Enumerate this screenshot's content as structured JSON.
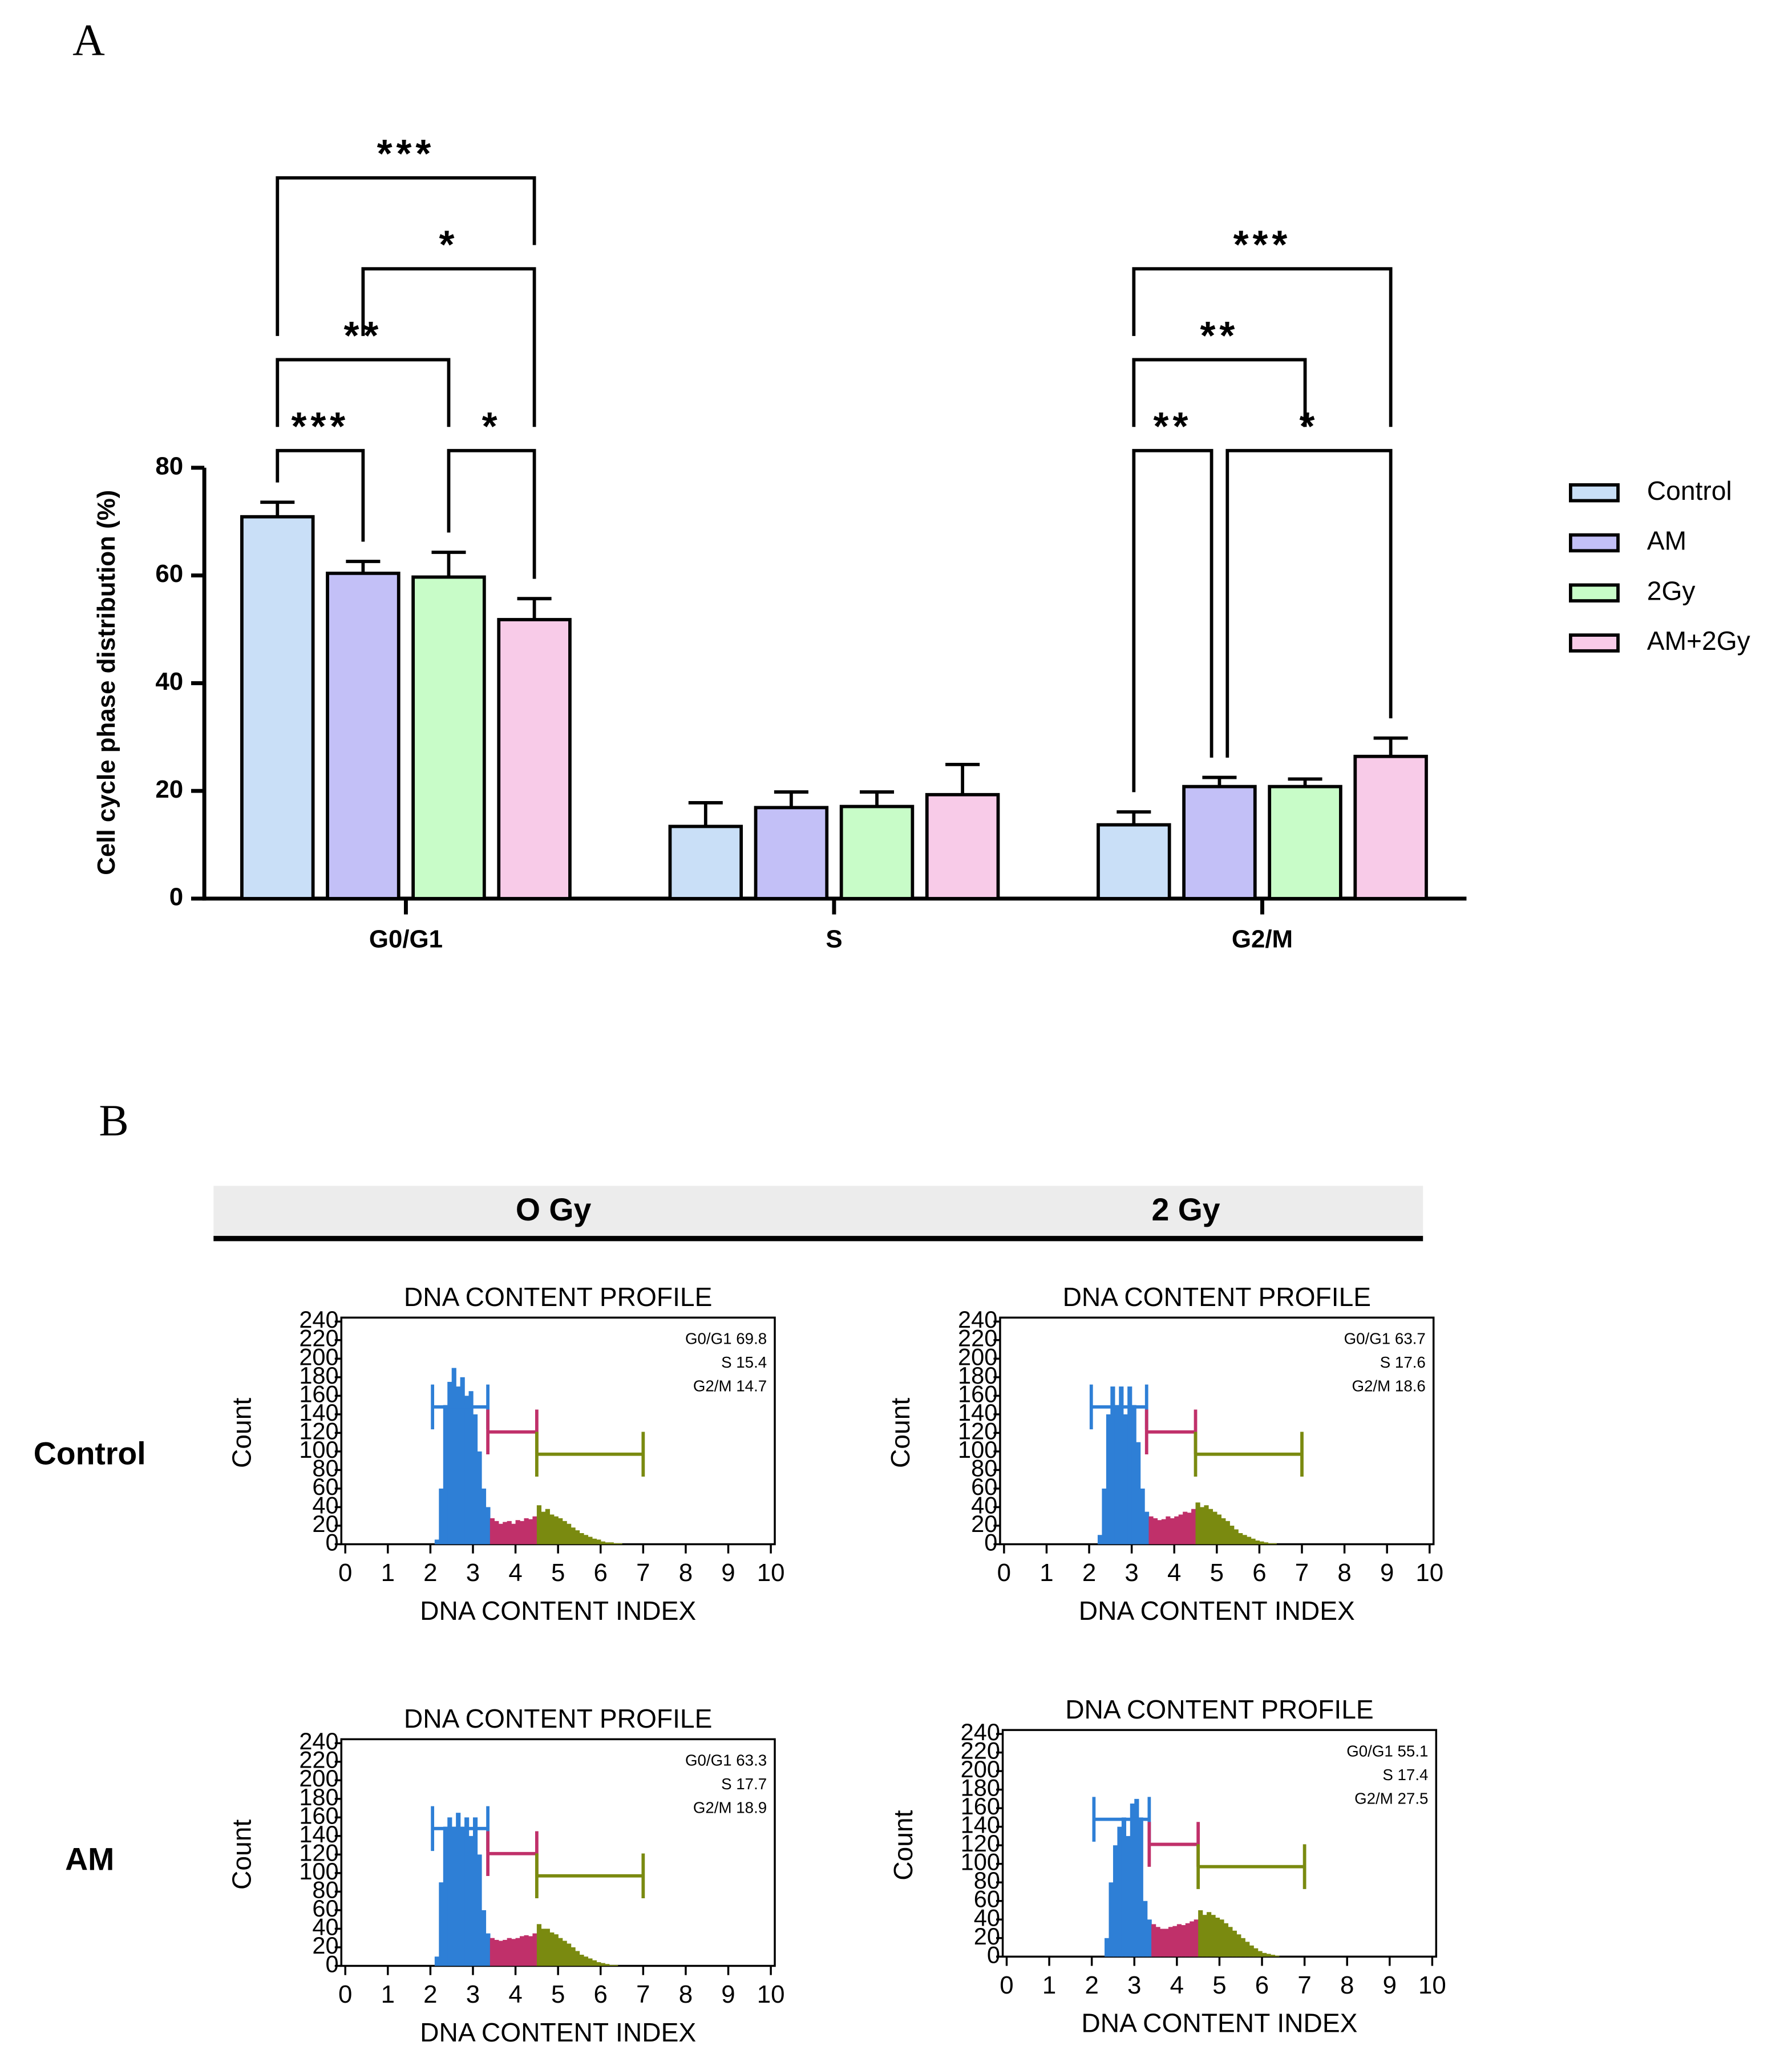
{
  "panels": [
    "A",
    "B"
  ],
  "columns": [
    "O Gy",
    "2 Gy"
  ],
  "rows": [
    "Control",
    "AM"
  ],
  "chart_data": [
    {
      "type": "bar",
      "ylabel": "Cell cycle phase distribution (%)",
      "categories": [
        "G0/G1",
        "S",
        "G2/M"
      ],
      "series": [
        {
          "name": "Control",
          "color": "#c9dff7",
          "values": [
            70.9,
            13.4,
            13.7
          ],
          "errors": [
            2.7,
            4.4,
            2.4
          ]
        },
        {
          "name": "AM",
          "color": "#c3c0f7",
          "values": [
            60.4,
            16.9,
            20.8
          ],
          "errors": [
            2.2,
            2.9,
            1.7
          ]
        },
        {
          "name": "2Gy",
          "color": "#c8fcc8",
          "values": [
            59.7,
            17.1,
            20.8
          ],
          "errors": [
            4.6,
            2.7,
            1.4
          ]
        },
        {
          "name": "AM+2Gy",
          "color": "#f8cbe8",
          "values": [
            51.8,
            19.3,
            26.4
          ],
          "errors": [
            3.9,
            5.6,
            3.4
          ]
        }
      ],
      "ylim": [
        0,
        80
      ],
      "yticks": [
        0,
        20,
        40,
        60,
        80
      ],
      "comparisons": [
        {
          "category": "G0/G1",
          "between": [
            "Control",
            "AM"
          ],
          "label": "***"
        },
        {
          "category": "G0/G1",
          "between": [
            "2Gy",
            "AM+2Gy"
          ],
          "label": "*"
        },
        {
          "category": "G0/G1",
          "between": [
            "Control",
            "2Gy"
          ],
          "label": "**"
        },
        {
          "category": "G0/G1",
          "between": [
            "AM",
            "AM+2Gy"
          ],
          "label": "*"
        },
        {
          "category": "G0/G1",
          "between": [
            "Control",
            "AM+2Gy"
          ],
          "label": "***"
        },
        {
          "category": "G2/M",
          "between": [
            "Control",
            "AM"
          ],
          "label": "**"
        },
        {
          "category": "G2/M",
          "between": [
            "AM",
            "AM+2Gy"
          ],
          "label": "*"
        },
        {
          "category": "G2/M",
          "between": [
            "Control",
            "2Gy"
          ],
          "label": "**"
        },
        {
          "category": "G2/M",
          "between": [
            "Control",
            "AM+2Gy"
          ],
          "label": "***"
        }
      ]
    },
    {
      "type": "histogram",
      "title": "DNA CONTENT PROFILE",
      "xlabel": "DNA CONTENT INDEX",
      "ylabel": "Count",
      "bins": [
        2.0,
        2.1,
        2.2,
        2.3,
        2.4,
        2.5,
        2.6,
        2.7,
        2.8,
        2.9,
        3.0,
        3.1,
        3.2,
        3.3,
        3.4,
        3.5,
        3.6,
        3.7,
        3.8,
        3.9,
        4.0,
        4.1,
        4.2,
        4.3,
        4.4,
        4.5,
        4.6,
        4.7,
        4.8,
        4.9,
        5.0,
        5.1,
        5.2,
        5.3,
        5.4,
        5.5,
        5.6,
        5.7,
        5.8,
        5.9,
        6.0,
        6.1,
        6.2,
        6.3,
        6.4,
        6.5
      ],
      "counts": [
        0,
        5,
        60,
        150,
        175,
        190,
        170,
        180,
        160,
        165,
        140,
        100,
        60,
        40,
        28,
        25,
        22,
        24,
        25,
        22,
        26,
        25,
        28,
        27,
        30,
        42,
        35,
        38,
        32,
        30,
        28,
        25,
        22,
        18,
        15,
        12,
        10,
        8,
        6,
        5,
        3,
        2,
        2,
        1,
        1
      ],
      "xlim": [
        0,
        10
      ],
      "xticks": [
        0,
        1,
        2,
        3,
        4,
        5,
        6,
        7,
        8,
        9,
        10
      ],
      "ylim": [
        0,
        240
      ],
      "yticks": [
        0,
        20,
        40,
        60,
        80,
        100,
        120,
        140,
        160,
        180,
        200,
        220,
        240
      ],
      "phases": [
        {
          "label": "G0/G1",
          "value": 69.8,
          "from": 2.05,
          "to": 3.35,
          "level": 148,
          "color": "#2e7fd6"
        },
        {
          "label": "S",
          "value": 15.4,
          "from": 3.35,
          "to": 4.5,
          "level": 121,
          "color": "#c0306a"
        },
        {
          "label": "G2/M",
          "value": 14.7,
          "from": 4.5,
          "to": 7.0,
          "level": 97,
          "color": "#7a8a10"
        }
      ]
    },
    {
      "type": "histogram",
      "title": "DNA CONTENT PROFILE",
      "xlabel": "DNA CONTENT INDEX",
      "ylabel": "Count",
      "bins": [
        2.0,
        2.1,
        2.2,
        2.3,
        2.4,
        2.5,
        2.6,
        2.7,
        2.8,
        2.9,
        3.0,
        3.1,
        3.2,
        3.3,
        3.4,
        3.5,
        3.6,
        3.7,
        3.8,
        3.9,
        4.0,
        4.1,
        4.2,
        4.3,
        4.4,
        4.5,
        4.6,
        4.7,
        4.8,
        4.9,
        5.0,
        5.1,
        5.2,
        5.3,
        5.4,
        5.5,
        5.6,
        5.7,
        5.8,
        5.9,
        6.0,
        6.1,
        6.2,
        6.3,
        6.4,
        6.5
      ],
      "counts": [
        0,
        0,
        10,
        60,
        140,
        170,
        150,
        170,
        140,
        170,
        150,
        110,
        60,
        35,
        30,
        28,
        26,
        27,
        30,
        28,
        30,
        32,
        35,
        34,
        38,
        45,
        40,
        42,
        38,
        35,
        32,
        28,
        25,
        20,
        16,
        12,
        10,
        8,
        6,
        4,
        3,
        2,
        1,
        1,
        0
      ],
      "xlim": [
        0,
        10
      ],
      "xticks": [
        0,
        1,
        2,
        3,
        4,
        5,
        6,
        7,
        8,
        9,
        10
      ],
      "ylim": [
        0,
        240
      ],
      "yticks": [
        0,
        20,
        40,
        60,
        80,
        100,
        120,
        140,
        160,
        180,
        200,
        220,
        240
      ],
      "phases": [
        {
          "label": "G0/G1",
          "value": 63.7,
          "from": 2.05,
          "to": 3.35,
          "level": 148,
          "color": "#2e7fd6"
        },
        {
          "label": "S",
          "value": 17.6,
          "from": 3.35,
          "to": 4.5,
          "level": 121,
          "color": "#c0306a"
        },
        {
          "label": "G2/M",
          "value": 18.6,
          "from": 4.5,
          "to": 7.0,
          "level": 97,
          "color": "#7a8a10"
        }
      ]
    },
    {
      "type": "histogram",
      "title": "DNA CONTENT PROFILE",
      "xlabel": "DNA CONTENT INDEX",
      "ylabel": "Count",
      "bins": [
        2.0,
        2.1,
        2.2,
        2.3,
        2.4,
        2.5,
        2.6,
        2.7,
        2.8,
        2.9,
        3.0,
        3.1,
        3.2,
        3.3,
        3.4,
        3.5,
        3.6,
        3.7,
        3.8,
        3.9,
        4.0,
        4.1,
        4.2,
        4.3,
        4.4,
        4.5,
        4.6,
        4.7,
        4.8,
        4.9,
        5.0,
        5.1,
        5.2,
        5.3,
        5.4,
        5.5,
        5.6,
        5.7,
        5.8,
        5.9,
        6.0,
        6.1,
        6.2,
        6.3,
        6.4,
        6.5
      ],
      "counts": [
        0,
        10,
        90,
        150,
        160,
        150,
        165,
        150,
        160,
        140,
        160,
        120,
        60,
        35,
        30,
        28,
        27,
        28,
        30,
        29,
        30,
        32,
        33,
        32,
        35,
        45,
        40,
        40,
        36,
        34,
        30,
        27,
        24,
        20,
        16,
        12,
        10,
        8,
        6,
        4,
        3,
        2,
        1,
        1,
        0
      ],
      "xlim": [
        0,
        10
      ],
      "xticks": [
        0,
        1,
        2,
        3,
        4,
        5,
        6,
        7,
        8,
        9,
        10
      ],
      "ylim": [
        0,
        240
      ],
      "yticks": [
        0,
        20,
        40,
        60,
        80,
        100,
        120,
        140,
        160,
        180,
        200,
        220,
        240
      ],
      "phases": [
        {
          "label": "G0/G1",
          "value": 63.3,
          "from": 2.05,
          "to": 3.35,
          "level": 148,
          "color": "#2e7fd6"
        },
        {
          "label": "S",
          "value": 17.7,
          "from": 3.35,
          "to": 4.5,
          "level": 121,
          "color": "#c0306a"
        },
        {
          "label": "G2/M",
          "value": 18.9,
          "from": 4.5,
          "to": 7.0,
          "level": 97,
          "color": "#7a8a10"
        }
      ]
    },
    {
      "type": "histogram",
      "title": "DNA CONTENT PROFILE",
      "xlabel": "DNA CONTENT INDEX",
      "ylabel": "Count",
      "bins": [
        2.0,
        2.1,
        2.2,
        2.3,
        2.4,
        2.5,
        2.6,
        2.7,
        2.8,
        2.9,
        3.0,
        3.1,
        3.2,
        3.3,
        3.4,
        3.5,
        3.6,
        3.7,
        3.8,
        3.9,
        4.0,
        4.1,
        4.2,
        4.3,
        4.4,
        4.5,
        4.6,
        4.7,
        4.8,
        4.9,
        5.0,
        5.1,
        5.2,
        5.3,
        5.4,
        5.5,
        5.6,
        5.7,
        5.8,
        5.9,
        6.0,
        6.1,
        6.2,
        6.3,
        6.4,
        6.5
      ],
      "counts": [
        0,
        0,
        0,
        20,
        80,
        120,
        140,
        150,
        130,
        165,
        170,
        150,
        60,
        40,
        35,
        32,
        30,
        30,
        32,
        33,
        35,
        34,
        36,
        38,
        40,
        50,
        45,
        48,
        45,
        42,
        40,
        36,
        32,
        28,
        24,
        20,
        16,
        12,
        9,
        6,
        4,
        3,
        2,
        1,
        0
      ],
      "xlim": [
        0,
        10
      ],
      "xticks": [
        0,
        1,
        2,
        3,
        4,
        5,
        6,
        7,
        8,
        9,
        10
      ],
      "ylim": [
        0,
        240
      ],
      "yticks": [
        0,
        20,
        40,
        60,
        80,
        100,
        120,
        140,
        160,
        180,
        200,
        220,
        240
      ],
      "phases": [
        {
          "label": "G0/G1",
          "value": 55.1,
          "from": 2.05,
          "to": 3.35,
          "level": 148,
          "color": "#2e7fd6"
        },
        {
          "label": "S",
          "value": 17.4,
          "from": 3.35,
          "to": 4.5,
          "level": 121,
          "color": "#c0306a"
        },
        {
          "label": "G2/M",
          "value": 27.5,
          "from": 4.5,
          "to": 7.0,
          "level": 97,
          "color": "#7a8a10"
        }
      ]
    }
  ]
}
